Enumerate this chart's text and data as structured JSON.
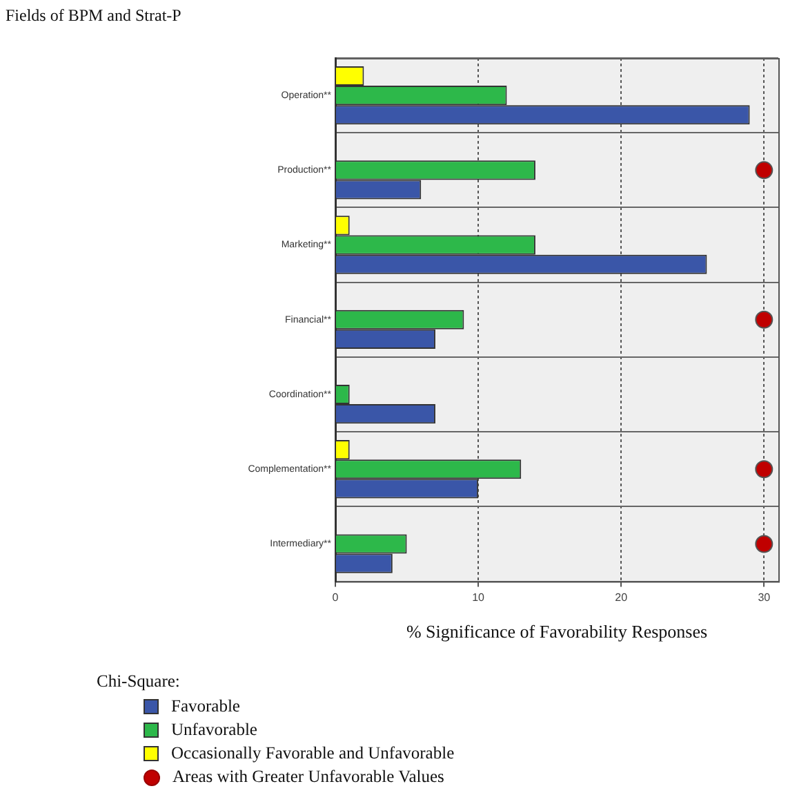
{
  "chart_data": {
    "type": "bar",
    "orientation": "horizontal",
    "title": "Fields of BPM and Strat-P",
    "xlabel": "% Significance of Favorability Responses",
    "legend_title": "Chi-Square:",
    "legend": "bottom left",
    "grid": true,
    "categories": [
      "Operation**",
      "Production**",
      "Marketing**",
      "Financial**",
      "Coordination**",
      "Complementation**",
      "Intermediary**"
    ],
    "xlim": [
      0,
      31
    ],
    "xticks": [
      0,
      10,
      20,
      30
    ],
    "series": [
      {
        "name": "Favorable",
        "color": "#3a56a8",
        "values": [
          29,
          6,
          26,
          7,
          7,
          10,
          4
        ]
      },
      {
        "name": "Unfavorable",
        "color": "#2db84a",
        "values": [
          12,
          14,
          14,
          9,
          1,
          13,
          5
        ]
      },
      {
        "name": "Occasionally Favorable and Unfavorable",
        "color": "#ffff00",
        "values": [
          2,
          null,
          1,
          null,
          null,
          1,
          null
        ]
      },
      {
        "name": "Areas with Greater Unfavorable Values",
        "type": "scatter",
        "marker": "circle",
        "color": "#c00000",
        "x": [
          "Production**",
          "Financial**",
          "Complementation**",
          "Intermediary**"
        ],
        "values": [
          30,
          30,
          30,
          30
        ]
      }
    ]
  }
}
